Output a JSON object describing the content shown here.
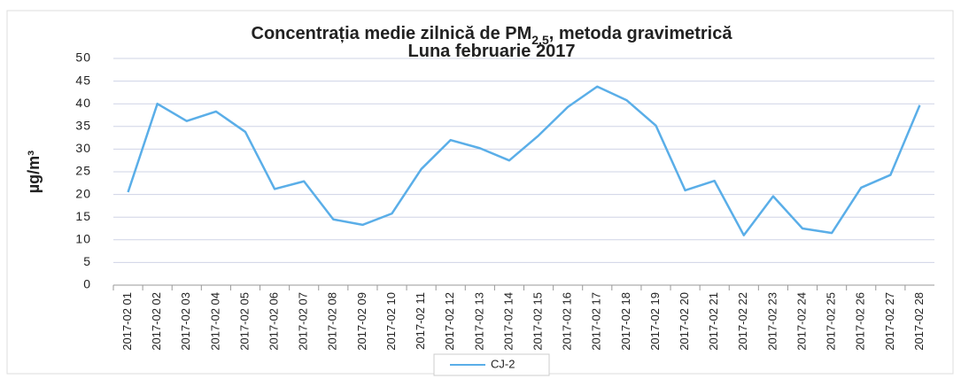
{
  "chart_data": {
    "type": "line",
    "title": [
      "Concentrația medie zilnică de PM",
      "2,5",
      ", metoda gravimetrică"
    ],
    "subtitle": "Luna februarie 2017",
    "y_label": "µg/m³",
    "categories": [
      "2017-02 01",
      "2017-02 02",
      "2017-02 03",
      "2017-02 04",
      "2017-02 05",
      "2017-02 06",
      "2017-02 07",
      "2017-02 08",
      "2017-02 09",
      "2017-02 10",
      "2017-02 11",
      "2017-02 12",
      "2017-02 13",
      "2017-02 14",
      "2017-02 15",
      "2017-02 16",
      "2017-02 17",
      "2017-02 18",
      "2017-02 19",
      "2017-02 20",
      "2017-02 21",
      "2017-02 22",
      "2017-02 23",
      "2017-02 24",
      "2017-02 25",
      "2017-02 26",
      "2017-02 27",
      "2017-02 28"
    ],
    "series": [
      {
        "name": "CJ-2",
        "color": "#5aaee8",
        "values": [
          20.5,
          40,
          36.2,
          38.3,
          33.8,
          21.2,
          22.9,
          14.5,
          13.3,
          15.8,
          25.6,
          32,
          30.2,
          27.5,
          33,
          39.3,
          43.8,
          40.8,
          35.2,
          20.9,
          23,
          11,
          19.6,
          12.5,
          11.5,
          21.5,
          24.3,
          39.7
        ]
      }
    ],
    "ylim": [
      0,
      50
    ],
    "yticks": [
      0,
      5,
      10,
      15,
      20,
      25,
      30,
      35,
      40,
      45,
      50
    ],
    "grid": true,
    "legend": "bottom"
  }
}
